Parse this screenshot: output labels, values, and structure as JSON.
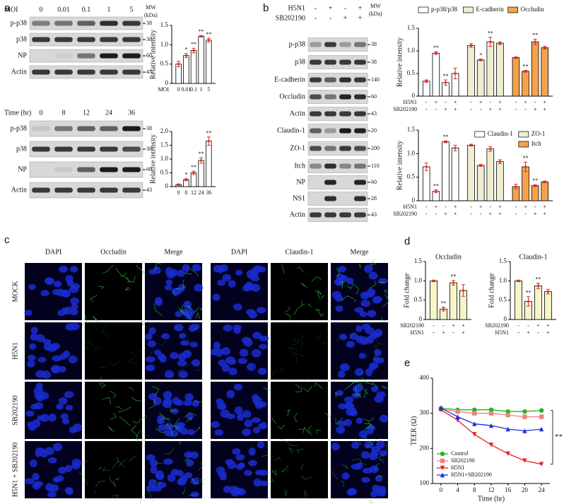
{
  "panel_labels": [
    "a",
    "b",
    "c",
    "d",
    "e"
  ],
  "blots": [
    {
      "header": "MOI",
      "lanes": [
        "0",
        "0.01",
        "0.1",
        "1",
        "5"
      ],
      "mw_title": "MW",
      "mw_unit": "(kDa)",
      "rows": [
        {
          "label": "p-p38",
          "mw": "38"
        },
        {
          "label": "p38",
          "mw": "38"
        },
        {
          "label": "NP",
          "mw": "60"
        },
        {
          "label": "Actin",
          "mw": "43"
        }
      ]
    },
    {
      "header": "Time (hr)",
      "lanes": [
        "0",
        "8",
        "12",
        "24",
        "36"
      ],
      "rows": [
        {
          "label": "p-p38",
          "mw": "38"
        },
        {
          "label": "p38",
          "mw": "38"
        },
        {
          "label": "NP",
          "mw": "60"
        },
        {
          "label": "Actin",
          "mw": "43"
        }
      ]
    },
    {
      "conditions": [
        {
          "name": "H5N1",
          "signs": [
            "-",
            "+",
            "-",
            "+"
          ]
        },
        {
          "name": "SB202190",
          "signs": [
            "-",
            "-",
            "+",
            "+"
          ]
        }
      ],
      "mw_title": "MW",
      "mw_unit": "(kDa)",
      "rows": [
        {
          "label": "p-p38",
          "mw": "38"
        },
        {
          "label": "p38",
          "mw": "38"
        },
        {
          "label": "E-cadherin",
          "mw": "140"
        },
        {
          "label": "Occludin",
          "mw": "60"
        },
        {
          "label": "Actin",
          "mw": "43"
        },
        {
          "label": "Claudin-1",
          "mw": "20"
        },
        {
          "label": "ZO-1",
          "mw": "200"
        },
        {
          "label": "Itch",
          "mw": "110"
        },
        {
          "label": "NP",
          "mw": "60"
        },
        {
          "label": "NS1",
          "mw": "28"
        },
        {
          "label": "Actin",
          "mw": "43"
        }
      ]
    }
  ],
  "micrographs": {
    "columns": [
      "DAPI",
      "Occludin",
      "Merge",
      "DAPI",
      "Claudin-1",
      "Merge"
    ],
    "rows": [
      "MOCK",
      "H5N1",
      "SB202190",
      "H5N1 + SB202190"
    ]
  },
  "chart_data": [
    {
      "type": "bar",
      "xlabel": "MOI",
      "ylabel": "Relative intensity",
      "categories": [
        "0",
        "0.01",
        "0.1",
        "1",
        "5"
      ],
      "values": [
        0.5,
        0.72,
        0.85,
        1.22,
        1.12
      ],
      "errors": [
        0.07,
        0.05,
        0.06,
        0.02,
        0.05
      ],
      "significance": [
        null,
        "*",
        "**",
        "**",
        "**"
      ],
      "color": "#ffffff",
      "ylim": [
        0,
        1.5
      ],
      "yticks": [
        0,
        0.5,
        {
          "value": 1,
          "label": "1.0"
        },
        1.5
      ]
    },
    {
      "type": "bar",
      "ylabel": "Relative intensity",
      "categories": [
        "0",
        "8",
        "12",
        "24",
        "36"
      ],
      "values": [
        0.07,
        0.25,
        0.5,
        0.95,
        1.65
      ],
      "errors": [
        0.03,
        0.04,
        0.06,
        0.1,
        0.15
      ],
      "significance": [
        null,
        "*",
        "**",
        "**",
        "**"
      ],
      "color": "#ffffff",
      "ylim": [
        0,
        2
      ],
      "yticks": [
        0,
        0.5,
        {
          "value": 1,
          "label": "1.0"
        },
        1.5,
        {
          "value": 2,
          "label": "2.0"
        }
      ]
    },
    {
      "type": "bar",
      "ylabel": "Relative intensity",
      "legend": "top",
      "conditions": [
        {
          "name": "H5N1",
          "signs": [
            "-",
            "+",
            "-",
            "+"
          ]
        },
        {
          "name": "SB202190",
          "signs": [
            "-",
            "-",
            "+",
            "+"
          ]
        }
      ],
      "series": [
        {
          "name": "p-p38/p38",
          "color": "#ffffff",
          "values": [
            0.33,
            0.95,
            0.3,
            0.5
          ],
          "errors": [
            0.03,
            0.03,
            0.06,
            0.12
          ],
          "significance": [
            null,
            "**",
            "**",
            null
          ]
        },
        {
          "name": "E-cadherin",
          "color": "#efeed2",
          "values": [
            1.12,
            0.8,
            1.2,
            1.17
          ],
          "errors": [
            0.04,
            0.02,
            0.1,
            0.03
          ],
          "significance": [
            null,
            "*",
            "**",
            null
          ]
        },
        {
          "name": "Occludin",
          "color": "#f3a24e",
          "values": [
            0.85,
            0.55,
            1.2,
            1.07
          ],
          "errors": [
            0.02,
            0.02,
            0.06,
            0.03
          ],
          "significance": [
            null,
            "**",
            "**",
            null
          ]
        }
      ],
      "ylim": [
        0,
        1.5
      ],
      "yticks": [
        0,
        0.5,
        {
          "value": 1,
          "label": "1.0"
        },
        1.5
      ]
    },
    {
      "type": "bar",
      "ylabel": "Relative intensity",
      "legend": "upper right",
      "conditions": [
        {
          "name": "H5N1",
          "signs": [
            "-",
            "+",
            "-",
            "+"
          ]
        },
        {
          "name": "SB202190",
          "signs": [
            "-",
            "-",
            "+",
            "+"
          ]
        }
      ],
      "series": [
        {
          "name": "Claudin-1",
          "color": "#ffffff",
          "values": [
            0.72,
            0.2,
            1.25,
            1.12
          ],
          "errors": [
            0.08,
            0.03,
            0.02,
            0.06
          ],
          "significance": [
            null,
            "**",
            "**",
            null
          ]
        },
        {
          "name": "ZO-1",
          "color": "#efeed2",
          "values": [
            1.18,
            0.75,
            1.1,
            0.83
          ],
          "errors": [
            0.02,
            0.02,
            0.05,
            0.04
          ],
          "significance": [
            null,
            null,
            null,
            null
          ]
        },
        {
          "name": "Itch",
          "color": "#f3a24e",
          "values": [
            0.3,
            0.72,
            0.32,
            0.4
          ],
          "errors": [
            0.05,
            0.1,
            0.02,
            0.02
          ],
          "significance": [
            null,
            "**",
            "**",
            null
          ]
        }
      ],
      "ylim": [
        0,
        1.5
      ],
      "yticks": [
        0,
        0.5,
        {
          "value": 1,
          "label": "1.0"
        },
        1.5
      ]
    },
    {
      "type": "bar",
      "title": "Occludin",
      "ylabel": "Fold change",
      "conditions": [
        {
          "name": "SB202190",
          "signs": [
            "-",
            "-",
            "+",
            "+"
          ]
        },
        {
          "name": "H5N1",
          "signs": [
            "-",
            "+",
            "-",
            "+"
          ]
        }
      ],
      "values": [
        1.0,
        0.27,
        0.95,
        0.75
      ],
      "errors": [
        0.02,
        0.05,
        0.06,
        0.15
      ],
      "significance": [
        null,
        "**",
        "**",
        null
      ],
      "color": "#f6f5c8",
      "ylim": [
        0,
        1.5
      ],
      "yticks": [
        0,
        0.5,
        {
          "value": 1,
          "label": "1.0"
        },
        1.5
      ]
    },
    {
      "type": "bar",
      "title": "Claudin-1",
      "ylabel": "Fold change",
      "conditions": [
        {
          "name": "SB202190",
          "signs": [
            "-",
            "-",
            "+",
            "+"
          ]
        },
        {
          "name": "H5N1",
          "signs": [
            "-",
            "+",
            "-",
            "+"
          ]
        }
      ],
      "values": [
        1.0,
        0.47,
        0.87,
        0.72
      ],
      "errors": [
        0.02,
        0.12,
        0.07,
        0.06
      ],
      "significance": [
        null,
        "**",
        "**",
        null
      ],
      "color": "#f6f5c8",
      "ylim": [
        0,
        1.5
      ],
      "yticks": [
        0,
        0.5,
        {
          "value": 1,
          "label": "1.0"
        },
        1.5
      ]
    },
    {
      "type": "line",
      "xlabel": "Time (hr)",
      "ylabel": "TEER (Ω)",
      "legend": "lower left",
      "annotation": "**",
      "x": [
        0,
        4,
        8,
        12,
        16,
        20,
        24
      ],
      "series": [
        {
          "name": "Control",
          "color": "#22b522",
          "marker": "circle",
          "values": [
            315,
            310,
            310,
            310,
            305,
            305,
            308
          ]
        },
        {
          "name": "SB202190",
          "color": "#f08080",
          "marker": "square",
          "values": [
            312,
            305,
            300,
            300,
            295,
            290,
            290
          ]
        },
        {
          "name": "H5N1",
          "color": "#e8202a",
          "marker": "triangle-down",
          "values": [
            310,
            280,
            240,
            210,
            185,
            165,
            155
          ]
        },
        {
          "name": "H5N1+SB202190",
          "color": "#1a2ee0",
          "marker": "triangle-up",
          "values": [
            315,
            290,
            270,
            265,
            255,
            250,
            255
          ]
        }
      ],
      "xlim": [
        -2,
        26
      ],
      "xticks": [
        0,
        4,
        8,
        12,
        16,
        20,
        24
      ],
      "ylim": [
        100,
        400
      ],
      "yticks": [
        100,
        200,
        300,
        400
      ]
    }
  ]
}
